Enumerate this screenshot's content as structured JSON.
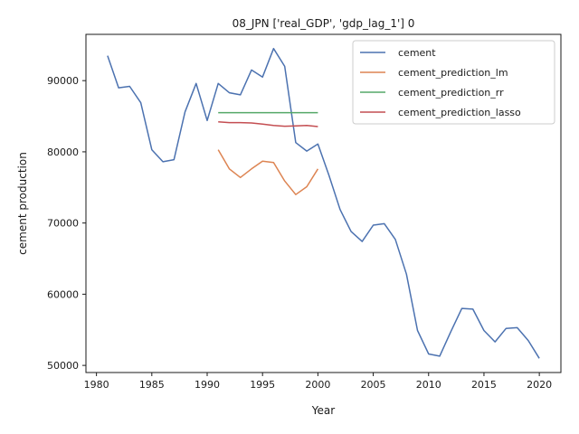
{
  "chart_data": {
    "type": "line",
    "title": "08_JPN ['real_GDP', 'gdp_lag_1'] 0",
    "xlabel": "Year",
    "ylabel": "cement production",
    "xlim": [
      1979.05,
      2021.95
    ],
    "ylim": [
      49000,
      96500
    ],
    "xticks": [
      1980,
      1985,
      1990,
      1995,
      2000,
      2005,
      2010,
      2015,
      2020
    ],
    "yticks": [
      50000,
      60000,
      70000,
      80000,
      90000
    ],
    "legend_position": "top-right",
    "grid": false,
    "series": [
      {
        "name": "cement",
        "color": "#4c72b0",
        "x": [
          1981,
          1982,
          1983,
          1984,
          1985,
          1986,
          1987,
          1988,
          1989,
          1990,
          1991,
          1992,
          1993,
          1994,
          1995,
          1996,
          1997,
          1998,
          1999,
          2000,
          2001,
          2002,
          2003,
          2004,
          2005,
          2006,
          2007,
          2008,
          2009,
          2010,
          2011,
          2012,
          2013,
          2014,
          2015,
          2016,
          2017,
          2018,
          2019,
          2020
        ],
        "y": [
          93500,
          89000,
          89200,
          86900,
          80300,
          78600,
          78900,
          85600,
          89600,
          84400,
          89600,
          88300,
          88000,
          91500,
          90500,
          94500,
          92000,
          81300,
          80100,
          81100,
          76700,
          71900,
          68800,
          67400,
          69700,
          69900,
          67700,
          62800,
          54900,
          51600,
          51300,
          54700,
          58000,
          57900,
          54900,
          53300,
          55200,
          55300,
          53500,
          51000
        ]
      },
      {
        "name": "cement_prediction_lm",
        "color": "#dd8452",
        "x": [
          1991,
          1992,
          1993,
          1994,
          1995,
          1996,
          1997,
          1998,
          1999,
          2000
        ],
        "y": [
          80300,
          77600,
          76400,
          77600,
          78700,
          78500,
          75900,
          74000,
          75100,
          77600
        ]
      },
      {
        "name": "cement_prediction_rr",
        "color": "#55a868",
        "x": [
          1991,
          1992,
          1993,
          1994,
          1995,
          1996,
          1997,
          1998,
          1999,
          2000
        ],
        "y": [
          85500,
          85500,
          85500,
          85500,
          85500,
          85500,
          85500,
          85500,
          85500,
          85500
        ]
      },
      {
        "name": "cement_prediction_lasso",
        "color": "#c44e52",
        "x": [
          1991,
          1992,
          1993,
          1994,
          1995,
          1996,
          1997,
          1998,
          1999,
          2000
        ],
        "y": [
          84200,
          84100,
          84100,
          84050,
          83900,
          83700,
          83600,
          83650,
          83700,
          83550
        ]
      }
    ]
  }
}
